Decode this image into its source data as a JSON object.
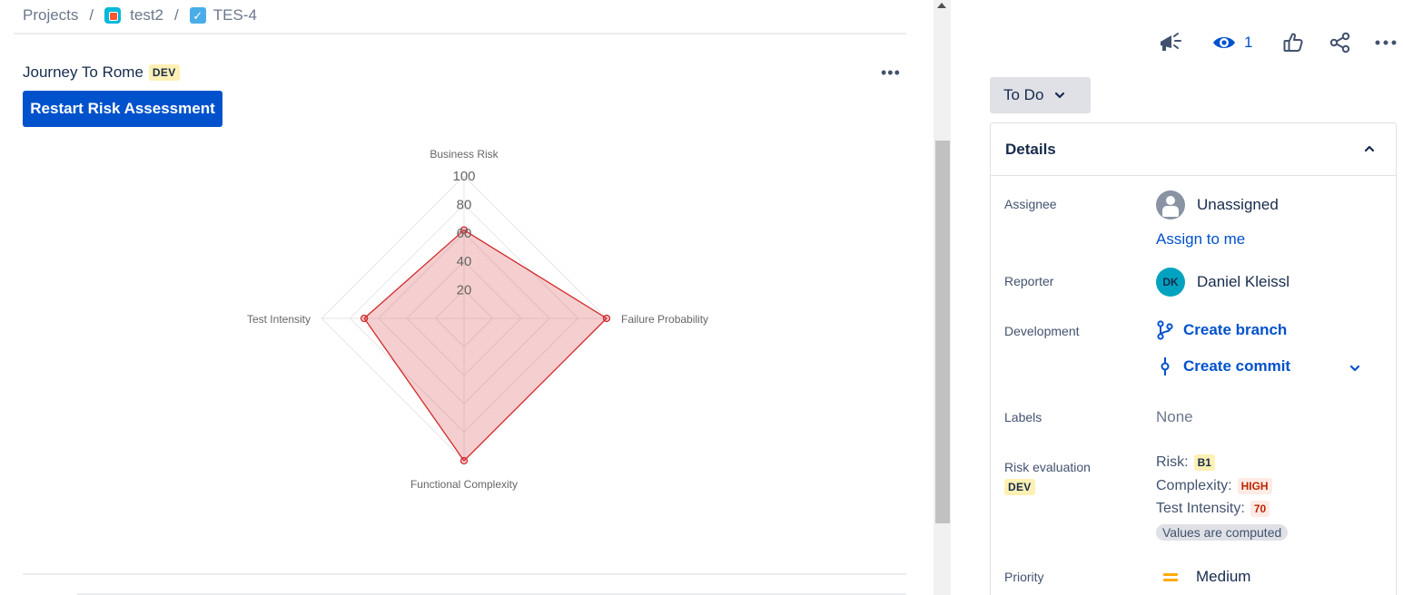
{
  "breadcrumb": {
    "projects": "Projects",
    "project": "test2",
    "issue": "TES-4",
    "separator": "/"
  },
  "panel": {
    "title": "Journey To Rome",
    "badge": "DEV",
    "more": "•••",
    "restart_button": "Restart Risk Assessment"
  },
  "chart_data": {
    "type": "radar",
    "axes": [
      "Business Risk",
      "Failure Probability",
      "Functional Complexity",
      "Test Intensity"
    ],
    "ticks": [
      20,
      40,
      60,
      80,
      100
    ],
    "range": [
      0,
      100
    ],
    "series": [
      {
        "values": [
          62,
          100,
          100,
          70
        ],
        "color": "#d0282a",
        "fill": "rgba(214, 63, 63, 0.25)"
      }
    ]
  },
  "actions": {
    "watchers": "1"
  },
  "status": {
    "label": "To Do"
  },
  "details": {
    "header": "Details",
    "assignee": {
      "label": "Assignee",
      "value": "Unassigned",
      "assign_link": "Assign to me"
    },
    "reporter": {
      "label": "Reporter",
      "value": "Daniel Kleissl",
      "initials": "DK"
    },
    "development": {
      "label": "Development",
      "branch": "Create branch",
      "commit": "Create commit"
    },
    "labels": {
      "label": "Labels",
      "value": "None"
    },
    "risk": {
      "label": "Risk evaluation",
      "badge": "DEV",
      "risk_label": "Risk:",
      "risk_value": "B1",
      "complexity_label": "Complexity:",
      "complexity_value": "HIGH",
      "intensity_label": "Test Intensity:",
      "intensity_value": "70",
      "computed": "Values are computed"
    },
    "priority": {
      "label": "Priority",
      "value": "Medium"
    }
  },
  "colors": {
    "primary": "#0052cc",
    "series": "#d0282a",
    "priority_medium": "#ffab00"
  }
}
